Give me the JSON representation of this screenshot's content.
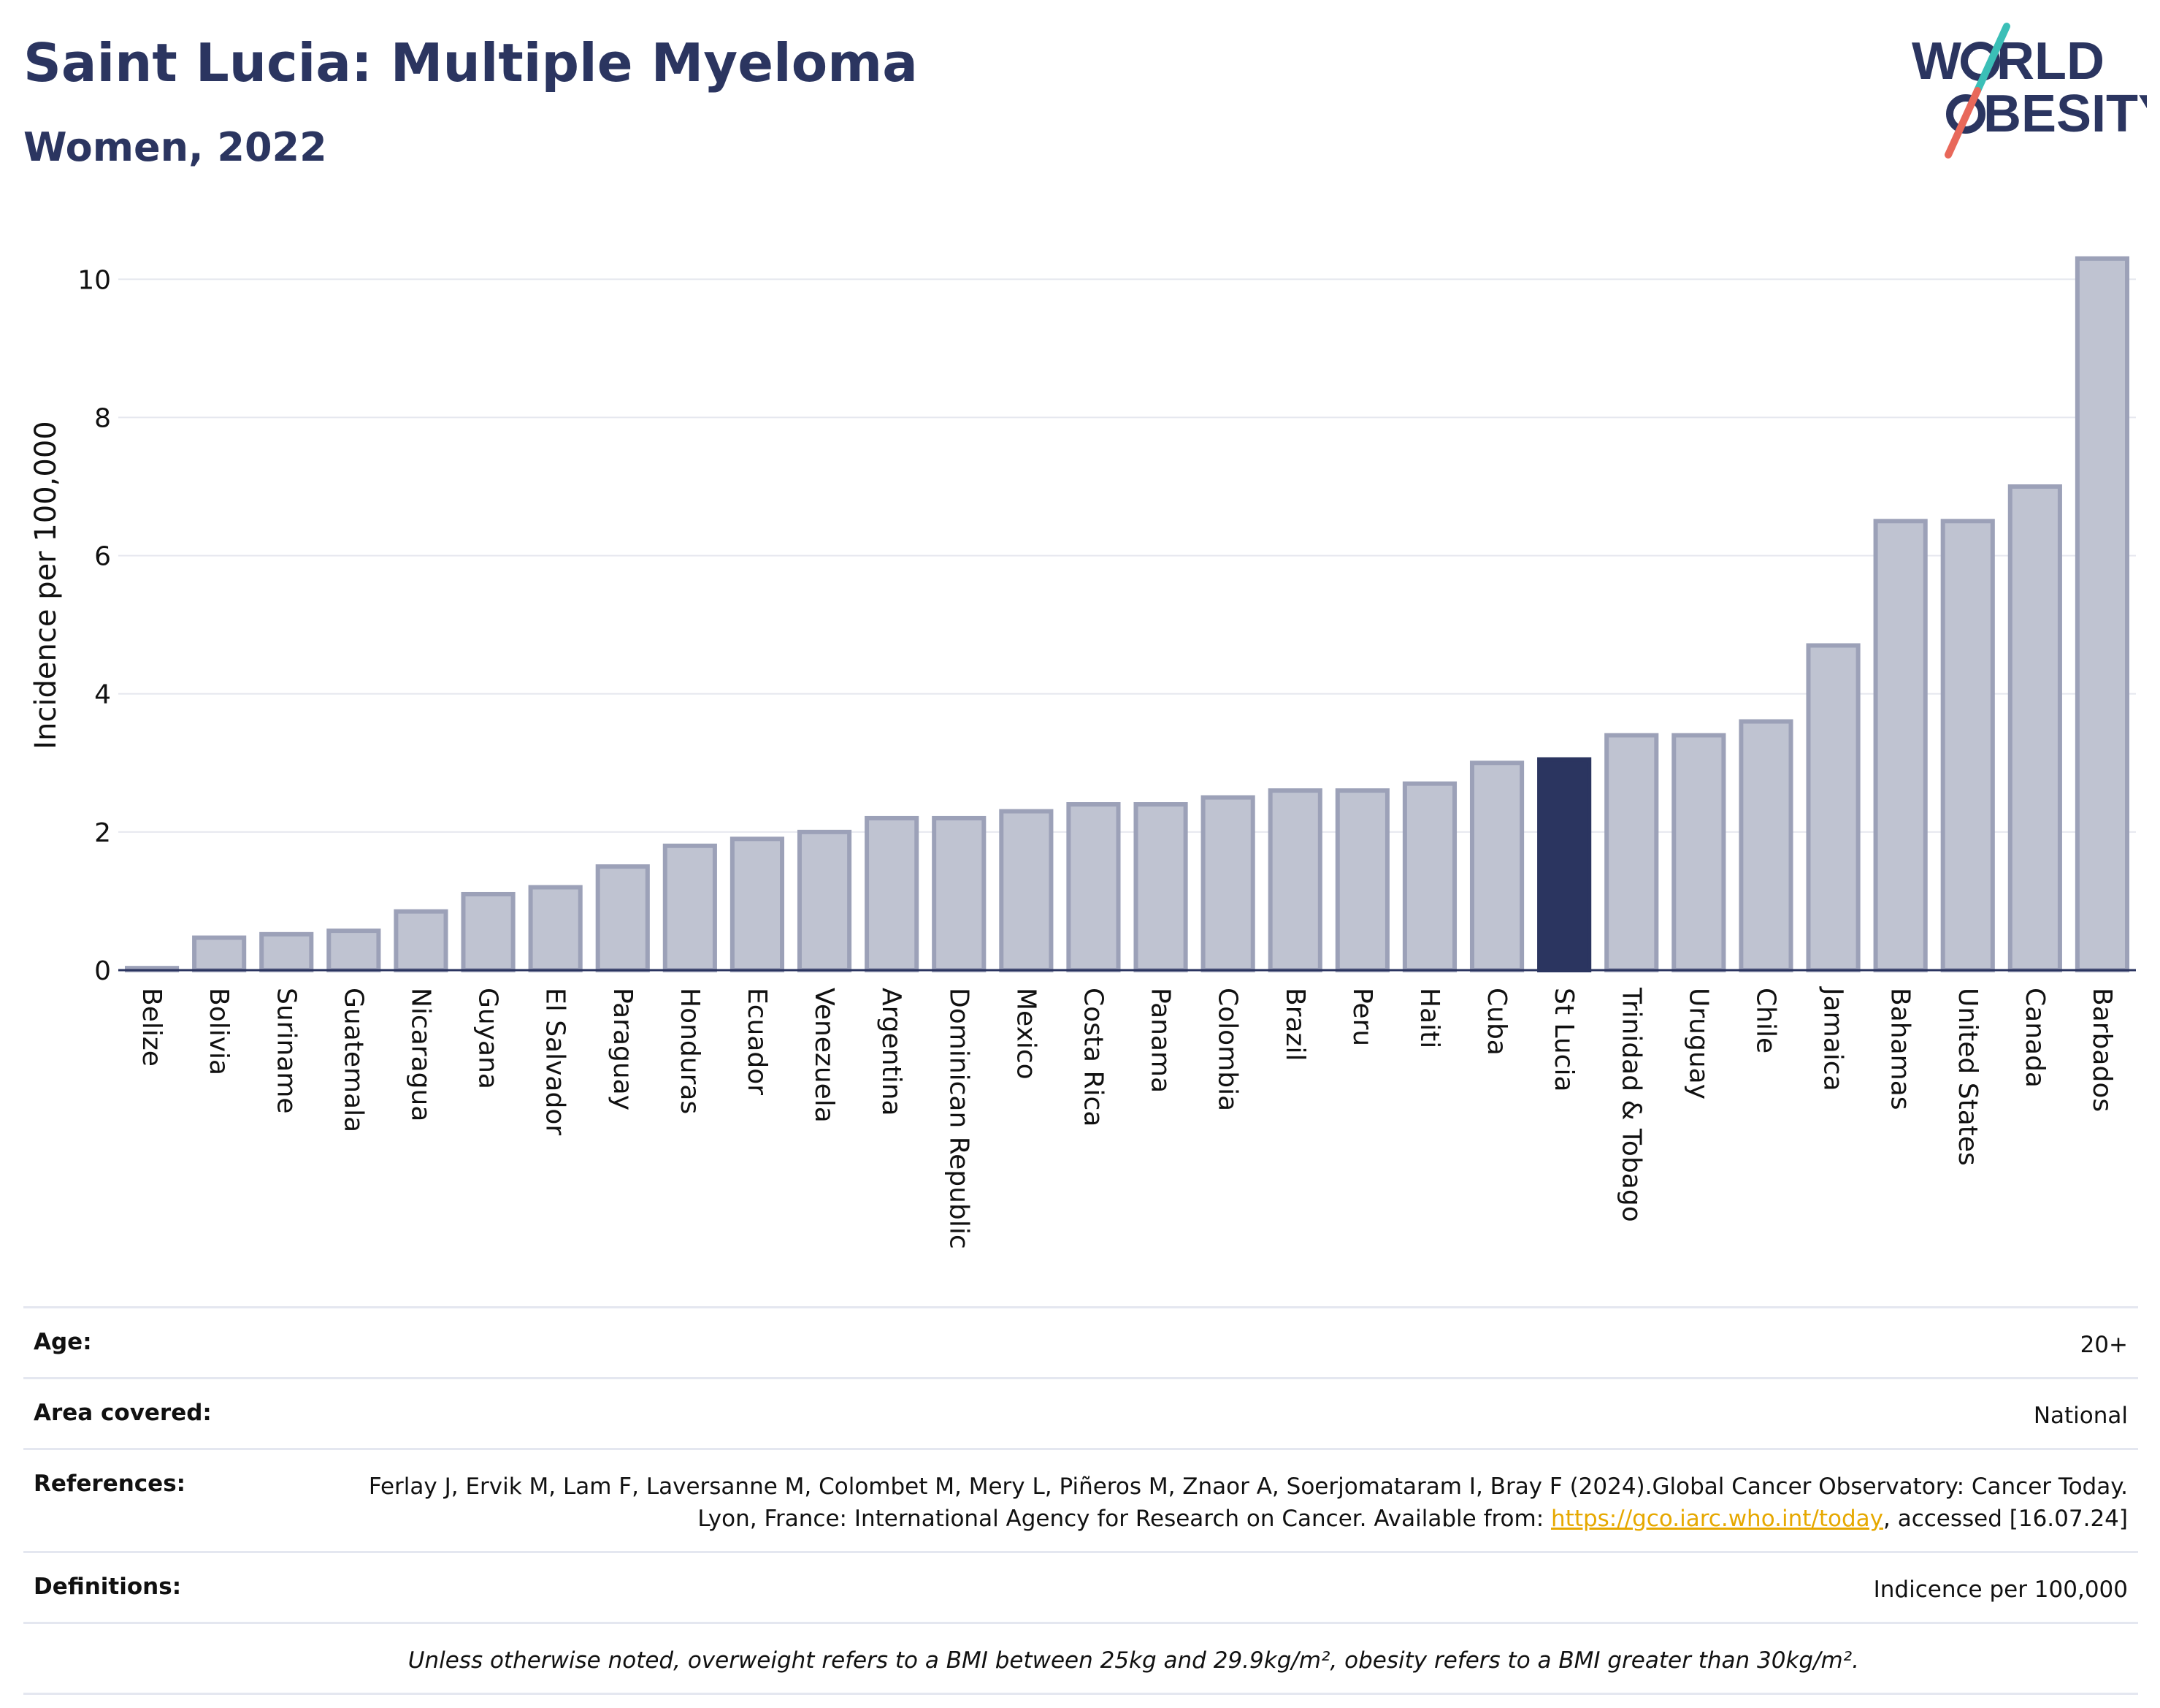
{
  "header": {
    "title": "Saint Lucia: Multiple Myeloma",
    "subtitle": "Women, 2022"
  },
  "logo": {
    "line1": "W",
    "line1b": "RLD",
    "line2": "BESITY",
    "slash_colors": [
      "#3bbfb7",
      "#e8685a"
    ],
    "text_color": "#2b3560"
  },
  "colors": {
    "bar_default": "#bfc3d1",
    "bar_outline": "#9ca1b8",
    "bar_highlight": "#2b3560",
    "grid": "#e6e8ef",
    "axis": "#2b3560"
  },
  "chart_data": {
    "type": "bar",
    "ylabel": "Incidence per 100,000",
    "ylim": [
      0,
      10.5
    ],
    "yticks": [
      "0",
      "2",
      "4",
      "6",
      "8",
      "10"
    ],
    "grid": true,
    "highlight": "St Lucia",
    "categories": [
      "Belize",
      "Bolivia",
      "Suriname",
      "Guatemala",
      "Nicaragua",
      "Guyana",
      "El Salvador",
      "Paraguay",
      "Honduras",
      "Ecuador",
      "Venezuela",
      "Argentina",
      "Dominican Republic",
      "Mexico",
      "Costa Rica",
      "Panama",
      "Colombia",
      "Brazil",
      "Peru",
      "Haiti",
      "Cuba",
      "St Lucia",
      "Trinidad & Tobago",
      "Uruguay",
      "Chile",
      "Jamaica",
      "Bahamas",
      "United States",
      "Canada",
      "Barbados"
    ],
    "values": [
      0.03,
      0.47,
      0.52,
      0.57,
      0.85,
      1.1,
      1.2,
      1.5,
      1.8,
      1.9,
      2.0,
      2.2,
      2.2,
      2.3,
      2.4,
      2.4,
      2.5,
      2.6,
      2.6,
      2.7,
      3.0,
      3.05,
      3.4,
      3.4,
      3.6,
      4.7,
      6.5,
      6.5,
      7.0,
      10.3
    ]
  },
  "info": {
    "age_label": "Age:",
    "age_value": "20+",
    "area_label": "Area covered:",
    "area_value": "National",
    "ref_label": "References:",
    "ref_text_1": "Ferlay J, Ervik M, Lam F, Laversanne M, Colombet M, Mery L, Piñeros M, Znaor A, Soerjomataram I, Bray F (2024).Global Cancer Observatory: Cancer Today. Lyon, France: International Agency for Research on Cancer. Available from: ",
    "ref_link": "https://gco.iarc.who.int/today",
    "ref_text_2": ", accessed [16.07.24]",
    "def_label": "Definitions:",
    "def_value": "Indicence per 100,000",
    "note": "Unless otherwise noted, overweight refers to a BMI between 25kg and 29.9kg/m², obesity refers to a BMI greater than 30kg/m²."
  }
}
